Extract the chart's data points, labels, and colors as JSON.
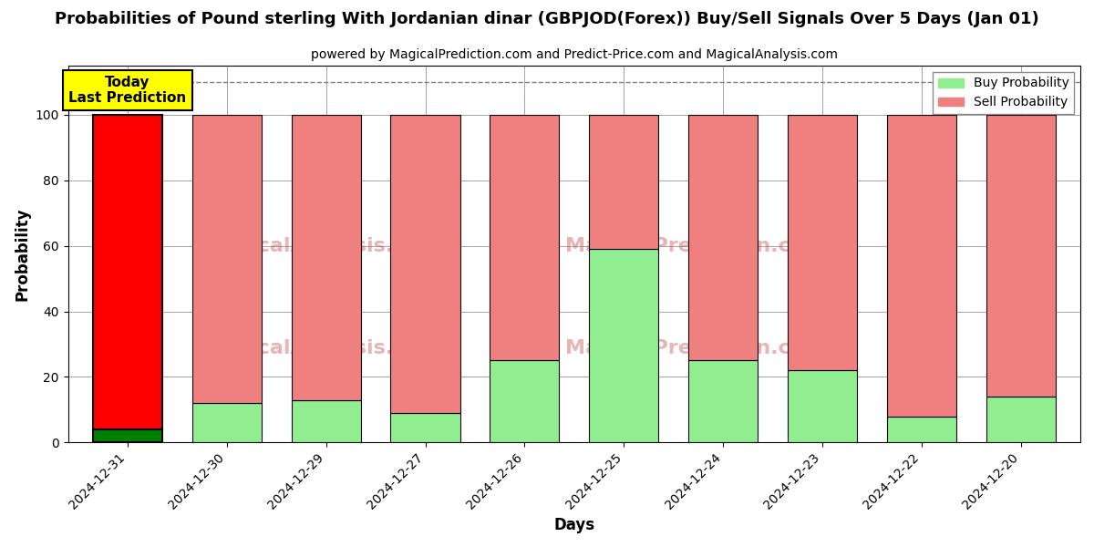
{
  "title": "Probabilities of Pound sterling With Jordanian dinar (GBPJOD(Forex)) Buy/Sell Signals Over 5 Days (Jan 01)",
  "subtitle": "powered by MagicalPrediction.com and Predict-Price.com and MagicalAnalysis.com",
  "xlabel": "Days",
  "ylabel": "Probability",
  "days": [
    "2024-12-31",
    "2024-12-30",
    "2024-12-29",
    "2024-12-27",
    "2024-12-26",
    "2024-12-25",
    "2024-12-24",
    "2024-12-23",
    "2024-12-22",
    "2024-12-20"
  ],
  "buy_values": [
    4,
    12,
    13,
    9,
    25,
    59,
    25,
    22,
    8,
    14
  ],
  "sell_values": [
    96,
    88,
    87,
    91,
    75,
    41,
    75,
    78,
    92,
    86
  ],
  "today_bar_index": 0,
  "buy_color_today": "#008000",
  "sell_color_today": "#ff0000",
  "buy_color_normal": "#90EE90",
  "sell_color_normal": "#F08080",
  "today_label": "Today\nLast Prediction",
  "dashed_line_y": 110,
  "ylim": [
    0,
    115
  ],
  "yticks": [
    0,
    20,
    40,
    60,
    80,
    100
  ],
  "background_color": "#ffffff",
  "legend_buy_label": "Buy Probability",
  "legend_sell_label": "Sell Probability"
}
